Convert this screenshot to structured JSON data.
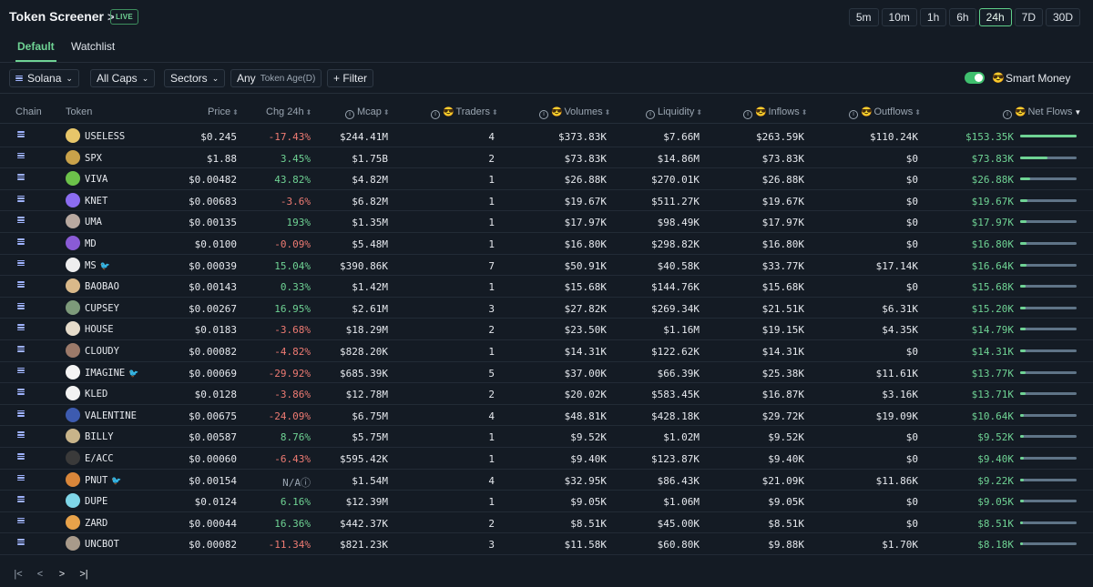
{
  "header": {
    "title": "Token Screener",
    "chevron": ">",
    "live": "LIVE",
    "timeframes": [
      "5m",
      "10m",
      "1h",
      "6h",
      "24h",
      "7D",
      "30D"
    ],
    "active_timeframe": "24h"
  },
  "tabs": [
    "Default",
    "Watchlist"
  ],
  "filters": {
    "chain": "Solana",
    "caps": "All Caps",
    "sectors": "Sectors",
    "age_value": "Any",
    "age_label": "Token Age(D)",
    "filter": "+ Filter",
    "smart_money": "Smart Money",
    "smart_money_enabled": true
  },
  "columns": {
    "chain": "Chain",
    "token": "Token",
    "price": "Price",
    "chg": "Chg 24h",
    "mcap": "Mcap",
    "traders": "Traders",
    "volumes": "Volumes",
    "liquidity": "Liquidity",
    "inflows": "Inflows",
    "outflows": "Outflows",
    "netflows": "Net Flows"
  },
  "rows": [
    {
      "token": "USELESS",
      "price": "$0.245",
      "chg": "-17.43%",
      "mcap": "$244.41M",
      "traders": "4",
      "volumes": "$373.83K",
      "liquidity": "$7.66M",
      "inflows": "$263.59K",
      "outflows": "$110.24K",
      "netflows": "$153.35K",
      "net_fraction": 1.0,
      "icon_color": "#e7c66a",
      "bird": false,
      "chg_dir": "neg"
    },
    {
      "token": "SPX",
      "price": "$1.88",
      "chg": "3.45%",
      "mcap": "$1.75B",
      "traders": "2",
      "volumes": "$73.83K",
      "liquidity": "$14.86M",
      "inflows": "$73.83K",
      "outflows": "$0",
      "netflows": "$73.83K",
      "net_fraction": 0.48,
      "icon_color": "#c9a24a",
      "bird": false,
      "chg_dir": "pos"
    },
    {
      "token": "VIVA",
      "price": "$0.00482",
      "chg": "43.82%",
      "mcap": "$4.82M",
      "traders": "1",
      "volumes": "$26.88K",
      "liquidity": "$270.01K",
      "inflows": "$26.88K",
      "outflows": "$0",
      "netflows": "$26.88K",
      "net_fraction": 0.18,
      "icon_color": "#6cc24a",
      "bird": false,
      "chg_dir": "pos"
    },
    {
      "token": "KNET",
      "price": "$0.00683",
      "chg": "-3.6%",
      "mcap": "$6.82M",
      "traders": "1",
      "volumes": "$19.67K",
      "liquidity": "$511.27K",
      "inflows": "$19.67K",
      "outflows": "$0",
      "netflows": "$19.67K",
      "net_fraction": 0.13,
      "icon_color": "#8b6cf0",
      "bird": false,
      "chg_dir": "neg"
    },
    {
      "token": "UMA",
      "price": "$0.00135",
      "chg": "193%",
      "mcap": "$1.35M",
      "traders": "1",
      "volumes": "$17.97K",
      "liquidity": "$98.49K",
      "inflows": "$17.97K",
      "outflows": "$0",
      "netflows": "$17.97K",
      "net_fraction": 0.12,
      "icon_color": "#b8a9a0",
      "bird": false,
      "chg_dir": "pos"
    },
    {
      "token": "MD",
      "price": "$0.0100",
      "chg": "-0.09%",
      "mcap": "$5.48M",
      "traders": "1",
      "volumes": "$16.80K",
      "liquidity": "$298.82K",
      "inflows": "$16.80K",
      "outflows": "$0",
      "netflows": "$16.80K",
      "net_fraction": 0.11,
      "icon_color": "#8a5bd6",
      "bird": false,
      "chg_dir": "neg"
    },
    {
      "token": "MS",
      "price": "$0.00039",
      "chg": "15.04%",
      "mcap": "$390.86K",
      "traders": "7",
      "volumes": "$50.91K",
      "liquidity": "$40.58K",
      "inflows": "$33.77K",
      "outflows": "$17.14K",
      "netflows": "$16.64K",
      "net_fraction": 0.11,
      "icon_color": "#eeeeee",
      "bird": true,
      "chg_dir": "pos"
    },
    {
      "token": "BAOBAO",
      "price": "$0.00143",
      "chg": "0.33%",
      "mcap": "$1.42M",
      "traders": "1",
      "volumes": "$15.68K",
      "liquidity": "$144.76K",
      "inflows": "$15.68K",
      "outflows": "$0",
      "netflows": "$15.68K",
      "net_fraction": 0.1,
      "icon_color": "#d9b98a",
      "bird": false,
      "chg_dir": "pos"
    },
    {
      "token": "CUPSEY",
      "price": "$0.00267",
      "chg": "16.95%",
      "mcap": "$2.61M",
      "traders": "3",
      "volumes": "$27.82K",
      "liquidity": "$269.34K",
      "inflows": "$21.51K",
      "outflows": "$6.31K",
      "netflows": "$15.20K",
      "net_fraction": 0.1,
      "icon_color": "#7d9a7a",
      "bird": false,
      "chg_dir": "pos"
    },
    {
      "token": "HOUSE",
      "price": "$0.0183",
      "chg": "-3.68%",
      "mcap": "$18.29M",
      "traders": "2",
      "volumes": "$23.50K",
      "liquidity": "$1.16M",
      "inflows": "$19.15K",
      "outflows": "$4.35K",
      "netflows": "$14.79K",
      "net_fraction": 0.1,
      "icon_color": "#e6dccb",
      "bird": false,
      "chg_dir": "neg"
    },
    {
      "token": "CLOUDY",
      "price": "$0.00082",
      "chg": "-4.82%",
      "mcap": "$828.20K",
      "traders": "1",
      "volumes": "$14.31K",
      "liquidity": "$122.62K",
      "inflows": "$14.31K",
      "outflows": "$0",
      "netflows": "$14.31K",
      "net_fraction": 0.09,
      "icon_color": "#9c7a6a",
      "bird": false,
      "chg_dir": "neg"
    },
    {
      "token": "IMAGINE",
      "price": "$0.00069",
      "chg": "-29.92%",
      "mcap": "$685.39K",
      "traders": "5",
      "volumes": "$37.00K",
      "liquidity": "$66.39K",
      "inflows": "$25.38K",
      "outflows": "$11.61K",
      "netflows": "$13.77K",
      "net_fraction": 0.09,
      "icon_color": "#f4f4f4",
      "bird": true,
      "chg_dir": "neg"
    },
    {
      "token": "KLED",
      "price": "$0.0128",
      "chg": "-3.86%",
      "mcap": "$12.78M",
      "traders": "2",
      "volumes": "$20.02K",
      "liquidity": "$583.45K",
      "inflows": "$16.87K",
      "outflows": "$3.16K",
      "netflows": "$13.71K",
      "net_fraction": 0.09,
      "icon_color": "#f2f2f2",
      "bird": false,
      "chg_dir": "neg"
    },
    {
      "token": "VALENTINE",
      "price": "$0.00675",
      "chg": "-24.09%",
      "mcap": "$6.75M",
      "traders": "4",
      "volumes": "$48.81K",
      "liquidity": "$428.18K",
      "inflows": "$29.72K",
      "outflows": "$19.09K",
      "netflows": "$10.64K",
      "net_fraction": 0.07,
      "icon_color": "#3d5bb0",
      "bird": false,
      "chg_dir": "neg"
    },
    {
      "token": "BILLY",
      "price": "$0.00587",
      "chg": "8.76%",
      "mcap": "$5.75M",
      "traders": "1",
      "volumes": "$9.52K",
      "liquidity": "$1.02M",
      "inflows": "$9.52K",
      "outflows": "$0",
      "netflows": "$9.52K",
      "net_fraction": 0.06,
      "icon_color": "#c8b48a",
      "bird": false,
      "chg_dir": "pos"
    },
    {
      "token": "E/ACC",
      "price": "$0.00060",
      "chg": "-6.43%",
      "mcap": "$595.42K",
      "traders": "1",
      "volumes": "$9.40K",
      "liquidity": "$123.87K",
      "inflows": "$9.40K",
      "outflows": "$0",
      "netflows": "$9.40K",
      "net_fraction": 0.06,
      "icon_color": "#3a3a3a",
      "bird": false,
      "chg_dir": "neg"
    },
    {
      "token": "PNUT",
      "price": "$0.00154",
      "chg": "N/A",
      "mcap": "$1.54M",
      "traders": "4",
      "volumes": "$32.95K",
      "liquidity": "$86.43K",
      "inflows": "$21.09K",
      "outflows": "$11.86K",
      "netflows": "$9.22K",
      "net_fraction": 0.06,
      "icon_color": "#d9863a",
      "bird": true,
      "chg_dir": "na"
    },
    {
      "token": "DUPE",
      "price": "$0.0124",
      "chg": "6.16%",
      "mcap": "$12.39M",
      "traders": "1",
      "volumes": "$9.05K",
      "liquidity": "$1.06M",
      "inflows": "$9.05K",
      "outflows": "$0",
      "netflows": "$9.05K",
      "net_fraction": 0.06,
      "icon_color": "#7fd6e8",
      "bird": false,
      "chg_dir": "pos"
    },
    {
      "token": "ZARD",
      "price": "$0.00044",
      "chg": "16.36%",
      "mcap": "$442.37K",
      "traders": "2",
      "volumes": "$8.51K",
      "liquidity": "$45.00K",
      "inflows": "$8.51K",
      "outflows": "$0",
      "netflows": "$8.51K",
      "net_fraction": 0.05,
      "icon_color": "#e8a24a",
      "bird": false,
      "chg_dir": "pos"
    },
    {
      "token": "UNCBOT",
      "price": "$0.00082",
      "chg": "-11.34%",
      "mcap": "$821.23K",
      "traders": "3",
      "volumes": "$11.58K",
      "liquidity": "$60.80K",
      "inflows": "$9.88K",
      "outflows": "$1.70K",
      "netflows": "$8.18K",
      "net_fraction": 0.05,
      "icon_color": "#a89a8a",
      "bird": false,
      "chg_dir": "neg"
    }
  ],
  "pager": [
    "|<",
    "<",
    ">",
    ">|"
  ],
  "icons": {
    "chain": "solana-icon",
    "info": "info-icon",
    "smart_money_emoji": "😎",
    "bird": "🐦",
    "na_info": "ⓘ"
  },
  "colors": {
    "accent": "#6fd394",
    "negative": "#ef7b73",
    "background": "#141b24"
  }
}
